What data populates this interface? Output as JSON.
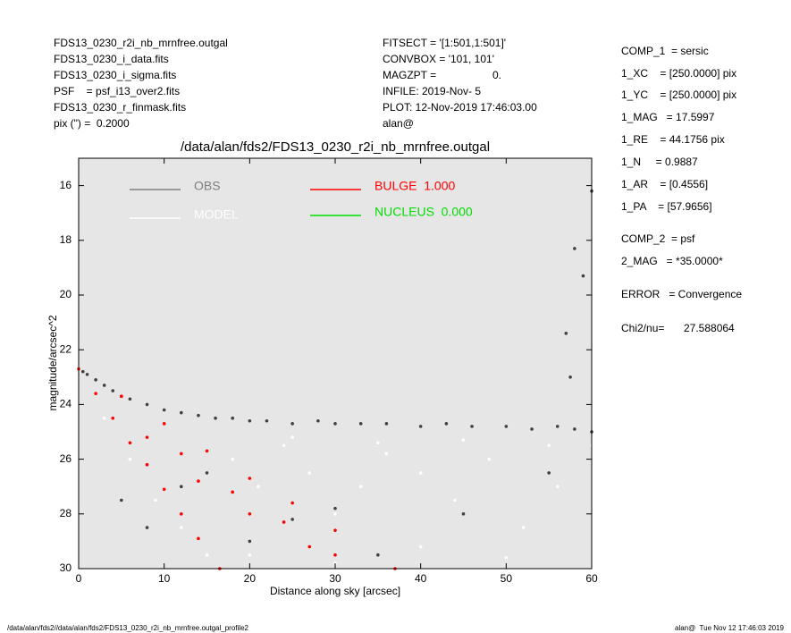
{
  "header": {
    "left": [
      "FDS13_0230_r2i_nb_mrnfree.outgal",
      "FDS13_0230_i_data.fits",
      "FDS13_0230_i_sigma.fits",
      "PSF    = psf_i13_over2.fits",
      "FDS13_0230_r_finmask.fits",
      "pix (\") =  0.2000"
    ],
    "middle": [
      "FITSECT = '[1:501,1:501]'",
      "CONVBOX = '101, 101'",
      "MAGZPT =",
      "INFILE: 2019-Nov- 5",
      "PLOT: 12-Nov-2019 17:46:03.00",
      "alan@"
    ],
    "magzpt_value": "0.",
    "right": [
      "COMP_1  = sersic",
      "1_XC    = [250.0000] pix",
      "1_YC    = [250.0000] pix",
      "1_MAG   = 17.5997",
      "1_RE    = 44.1756 pix",
      "1_N     = 0.9887",
      "1_AR    = [0.4556]",
      "1_PA    = [57.9656]",
      "COMP_2  = psf",
      "2_MAG   = *35.0000*",
      "ERROR   = Convergence",
      "Chi2/nu="
    ],
    "chi2_value": "27.588064"
  },
  "chart_data": {
    "type": "scatter",
    "title": "/data/alan/fds2/FDS13_0230_r2i_nb_mrnfree.outgal",
    "xlabel": "Distance along sky [arcsec]",
    "ylabel": "magnitude/arcsec^2",
    "xlim": [
      0,
      60
    ],
    "ylim": [
      30,
      15
    ],
    "xticks": [
      0,
      10,
      20,
      30,
      40,
      50,
      60
    ],
    "yticks": [
      16,
      18,
      20,
      22,
      24,
      26,
      28,
      30
    ],
    "background": "#e6e6e6",
    "series": [
      {
        "name": "OBS",
        "color": "#808080",
        "point_color": "#404040",
        "x": [
          0.5,
          1,
          2,
          3,
          4,
          5,
          6,
          8,
          10,
          12,
          14,
          16,
          18,
          20,
          22,
          25,
          28,
          30,
          33,
          36,
          40,
          43,
          46,
          50,
          53,
          56,
          58,
          60,
          5,
          8,
          12,
          15,
          20,
          25,
          30,
          35,
          45,
          55,
          57,
          58,
          59,
          60,
          57.5
        ],
        "values": [
          22.8,
          22.9,
          23.1,
          23.3,
          23.5,
          23.7,
          23.8,
          24.0,
          24.2,
          24.3,
          24.4,
          24.5,
          24.5,
          24.6,
          24.6,
          24.7,
          24.6,
          24.7,
          24.7,
          24.7,
          24.8,
          24.7,
          24.8,
          24.8,
          24.9,
          24.8,
          24.9,
          25.0,
          27.5,
          28.5,
          27.0,
          26.5,
          29.0,
          28.2,
          27.8,
          29.5,
          28.0,
          26.5,
          21.4,
          18.3,
          19.3,
          16.2,
          23.0
        ]
      },
      {
        "name": "MODEL",
        "color": "#ffffff",
        "point_color": "#ffffff",
        "x": [
          3,
          6,
          9,
          12,
          15,
          18,
          21,
          24,
          27,
          30,
          33,
          36,
          40,
          44,
          48,
          52,
          56,
          60,
          20,
          30,
          40,
          50,
          25,
          35,
          45,
          55
        ],
        "values": [
          24.5,
          26,
          27.5,
          28.5,
          29.5,
          26,
          27,
          25.5,
          26.5,
          28,
          27,
          25.8,
          26.5,
          27.5,
          26,
          28.5,
          27,
          25.5,
          29.5,
          29.8,
          29.2,
          29.6,
          25.2,
          25.4,
          25.3,
          25.5
        ]
      },
      {
        "name": "BULGE  1.000",
        "color": "#ff0000",
        "point_color": "#ff0000",
        "x": [
          0,
          2,
          4,
          6,
          8,
          10,
          12,
          14,
          16.5,
          5,
          10,
          15,
          20,
          25,
          30,
          37,
          8,
          14,
          20,
          27,
          12,
          18,
          24,
          30
        ],
        "values": [
          22.7,
          23.6,
          24.5,
          25.4,
          26.2,
          27.1,
          28.0,
          28.9,
          30,
          23.7,
          24.7,
          25.7,
          26.7,
          27.6,
          28.6,
          30,
          25.2,
          26.8,
          28.0,
          29.2,
          25.8,
          27.2,
          28.3,
          29.5
        ]
      },
      {
        "name": "NUCLEUS  0.000",
        "color": "#00dd00",
        "point_color": "#00dd00",
        "x": [],
        "values": []
      }
    ]
  },
  "footer": {
    "left": "/data/alan/fds2//data/alan/fds2/FDS13_0230_r2i_nb_mrnfree.outgal_profile2",
    "right": "alan@  Tue Nov 12 17:46:03 2019"
  }
}
